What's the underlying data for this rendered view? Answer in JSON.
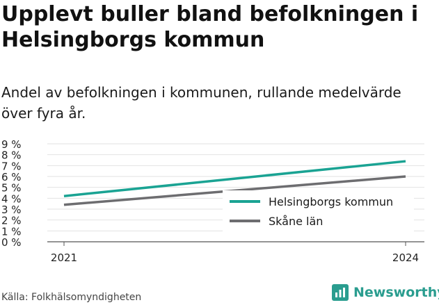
{
  "title": "Upplevt buller bland befolkningen i Helsingborgs kommun",
  "subtitle": "Andel av befolkningen i kommunen, rullande medelvärde över fyra år.",
  "source": "Källa: Folkhälsomyndigheten",
  "brand": {
    "name": "Newsworthy",
    "icon": "bar-chart-logo-icon",
    "color": "#2a9d8f"
  },
  "chart_data": {
    "type": "line",
    "x": [
      "2021",
      "2024"
    ],
    "series": [
      {
        "name": "Helsingborgs kommun",
        "values": [
          4.2,
          7.4
        ],
        "color": "#1aa393"
      },
      {
        "name": "Skåne län",
        "values": [
          3.4,
          6.0
        ],
        "color": "#6d6d70"
      }
    ],
    "ylim": [
      0,
      9
    ],
    "yticks": [
      0,
      1,
      2,
      3,
      4,
      5,
      6,
      7,
      8,
      9
    ],
    "ytick_labels": [
      "0 %",
      "1 %",
      "2 %",
      "3 %",
      "4 %",
      "5 %",
      "6 %",
      "7 %",
      "8 %",
      "9 %"
    ],
    "xticks": [
      "2021",
      "2024"
    ],
    "grid": true,
    "legend": "inside-right"
  }
}
